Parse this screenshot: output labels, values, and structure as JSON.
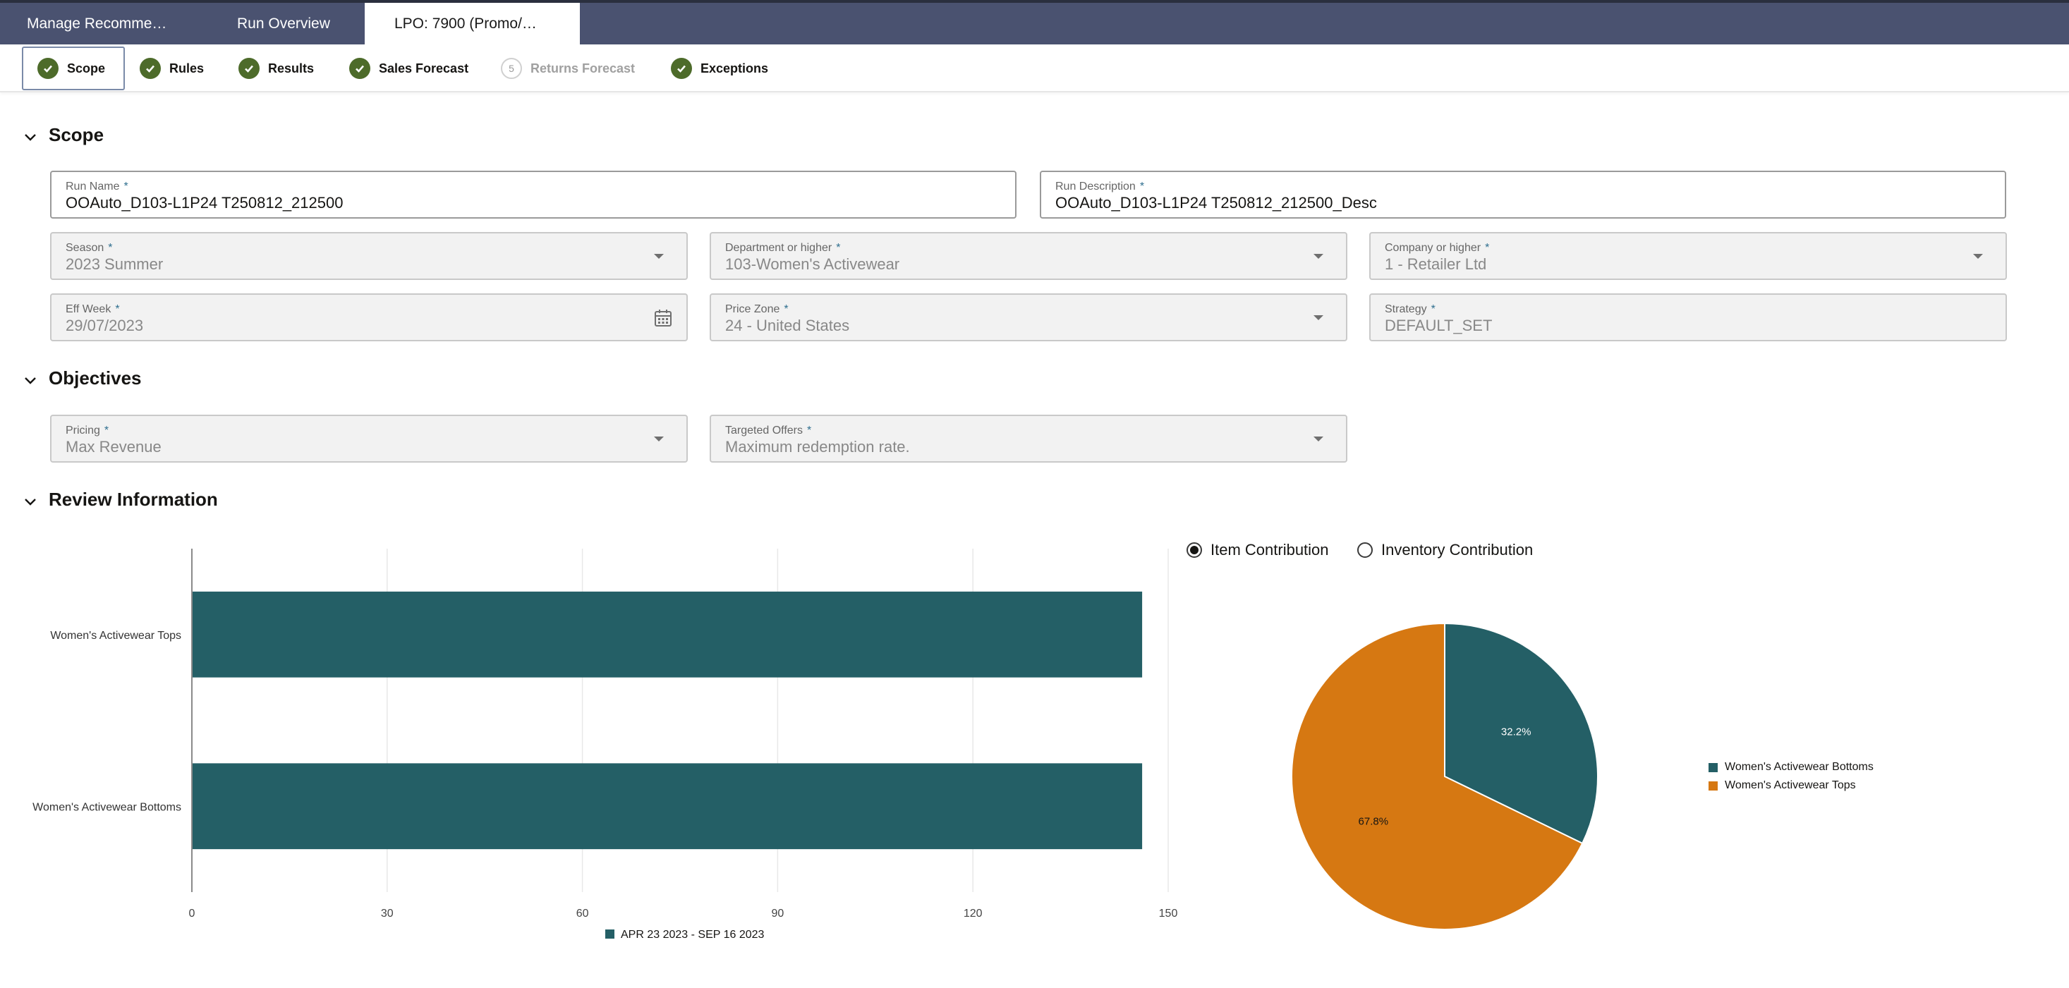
{
  "tabs": [
    {
      "label": "Manage Recomme…",
      "active": false
    },
    {
      "label": "Run Overview",
      "active": false
    },
    {
      "label": "LPO: 7900 (Promo/…",
      "active": true
    }
  ],
  "train": [
    {
      "label": "Scope",
      "status": "complete",
      "selected": true
    },
    {
      "label": "Rules",
      "status": "complete",
      "selected": false
    },
    {
      "label": "Results",
      "status": "complete",
      "selected": false
    },
    {
      "label": "Sales Forecast",
      "status": "complete",
      "selected": false
    },
    {
      "label": "Returns Forecast",
      "status": "disabled",
      "number": "5",
      "selected": false
    },
    {
      "label": "Exceptions",
      "status": "complete",
      "selected": false
    }
  ],
  "required_marker": "*",
  "scope": {
    "title": "Scope",
    "run_name": {
      "label": "Run Name",
      "value": "OOAuto_D103-L1P24 T250812_212500"
    },
    "run_description": {
      "label": "Run Description",
      "value": "OOAuto_D103-L1P24 T250812_212500_Desc"
    },
    "season": {
      "label": "Season",
      "value": "2023 Summer"
    },
    "department": {
      "label": "Department or higher",
      "value": "103-Women's Activewear"
    },
    "company": {
      "label": "Company or higher",
      "value": "1 - Retailer Ltd"
    },
    "eff_week": {
      "label": "Eff Week",
      "value": "29/07/2023"
    },
    "price_zone": {
      "label": "Price Zone",
      "value": "24 - United States"
    },
    "strategy": {
      "label": "Strategy",
      "value": "DEFAULT_SET"
    }
  },
  "objectives": {
    "title": "Objectives",
    "pricing": {
      "label": "Pricing",
      "value": "Max Revenue"
    },
    "targeted_offers": {
      "label": "Targeted Offers",
      "value": "Maximum redemption rate."
    }
  },
  "review": {
    "title": "Review Information",
    "radio_item": "Item Contribution",
    "radio_inventory": "Inventory Contribution",
    "selected_radio": "Item Contribution"
  },
  "colors": {
    "teal": "#245f66",
    "orange": "#d67812",
    "check_green": "#4d6b2a",
    "tabbar": "#4a5270"
  },
  "chart_data": [
    {
      "type": "bar",
      "orientation": "horizontal",
      "categories": [
        "Women's Activewear Tops",
        "Women's Activewear Bottoms"
      ],
      "series": [
        {
          "name": "APR 23 2023 - SEP 16 2023",
          "values": [
            146,
            146
          ]
        }
      ],
      "xlim": [
        0,
        150
      ],
      "xticks": [
        "0",
        "30",
        "60",
        "90",
        "120",
        "150"
      ],
      "legend": "bottom"
    },
    {
      "type": "pie",
      "labels": [
        "Women's Activewear Bottoms",
        "Women's Activewear Tops"
      ],
      "values": [
        32.2,
        67.8
      ],
      "value_labels": [
        "32.2%",
        "67.8%"
      ],
      "legend": "right"
    }
  ]
}
